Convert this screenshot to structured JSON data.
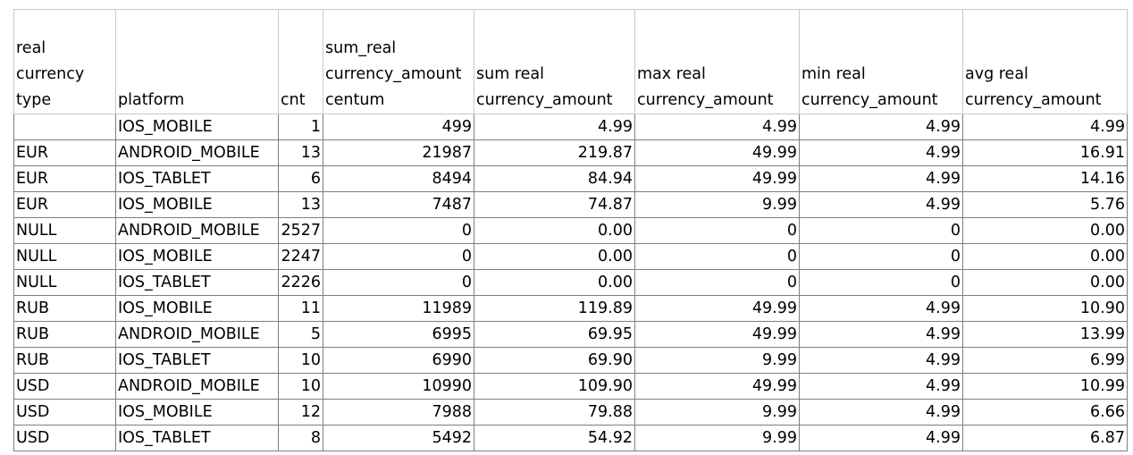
{
  "sheet": {
    "columns": [
      {
        "label": "real\ncurrency\ntype",
        "align": "left"
      },
      {
        "label": "platform",
        "align": "left"
      },
      {
        "label": "cnt",
        "align": "right"
      },
      {
        "label": "sum_real\ncurrency_amount\ncentum",
        "align": "right"
      },
      {
        "label": "sum real\ncurrency_amount",
        "align": "right"
      },
      {
        "label": "max real\ncurrency_amount",
        "align": "right"
      },
      {
        "label": "min real\ncurrency_amount",
        "align": "right"
      },
      {
        "label": "avg real\ncurrency_amount",
        "align": "right"
      }
    ],
    "rows": [
      [
        "",
        "IOS_MOBILE",
        "1",
        "499",
        "4.99",
        "4.99",
        "4.99",
        "4.99"
      ],
      [
        "EUR",
        "ANDROID_MOBILE",
        "13",
        "21987",
        "219.87",
        "49.99",
        "4.99",
        "16.91"
      ],
      [
        "EUR",
        "IOS_TABLET",
        "6",
        "8494",
        "84.94",
        "49.99",
        "4.99",
        "14.16"
      ],
      [
        "EUR",
        "IOS_MOBILE",
        "13",
        "7487",
        "74.87",
        "9.99",
        "4.99",
        "5.76"
      ],
      [
        "NULL",
        "ANDROID_MOBILE",
        "2527",
        "0",
        "0.00",
        "0",
        "0",
        "0.00"
      ],
      [
        "NULL",
        "IOS_MOBILE",
        "2247",
        "0",
        "0.00",
        "0",
        "0",
        "0.00"
      ],
      [
        "NULL",
        "IOS_TABLET",
        "2226",
        "0",
        "0.00",
        "0",
        "0",
        "0.00"
      ],
      [
        "RUB",
        "IOS_MOBILE",
        "11",
        "11989",
        "119.89",
        "49.99",
        "4.99",
        "10.90"
      ],
      [
        "RUB",
        "ANDROID_MOBILE",
        "5",
        "6995",
        "69.95",
        "49.99",
        "4.99",
        "13.99"
      ],
      [
        "RUB",
        "IOS_TABLET",
        "10",
        "6990",
        "69.90",
        "9.99",
        "4.99",
        "6.99"
      ],
      [
        "USD",
        "ANDROID_MOBILE",
        "10",
        "10990",
        "109.90",
        "49.99",
        "4.99",
        "10.99"
      ],
      [
        "USD",
        "IOS_MOBILE",
        "12",
        "7988",
        "79.88",
        "9.99",
        "4.99",
        "6.66"
      ],
      [
        "USD",
        "IOS_TABLET",
        "8",
        "5492",
        "54.92",
        "9.99",
        "4.99",
        "6.87"
      ]
    ]
  }
}
